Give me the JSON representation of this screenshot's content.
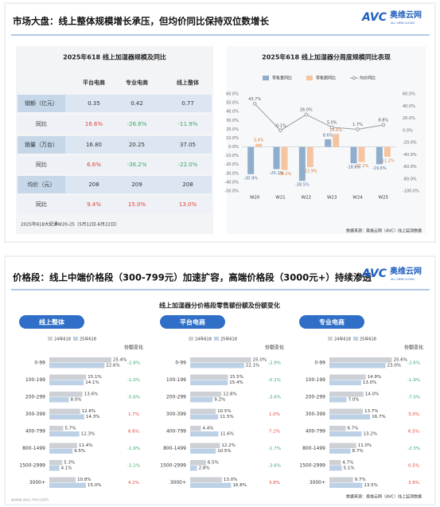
{
  "logo": {
    "mark": "AVC",
    "name": "奥维云网",
    "sub": "ALL VIEW CLOUD"
  },
  "url": "www.avc-mr.com",
  "slide1": {
    "title": "市场大盘：线上整体规模增长承压，但均价同比保持双位数增长",
    "source": "数据来源：奥维云网（AVC）线上监测数据"
  },
  "slide2": {
    "title": "价格段：线上中端价格段（300-799元）加速扩容，高端价格段（3000元+）持续渗透",
    "subtitle": "线上加湿器分价格段零售额份额及份额变化",
    "source": "数据来源：奥维云网（AVC）线上监测数据"
  },
  "table": {
    "title": "2025年618 线上加湿器规模及同比",
    "columns": [
      "平台电商",
      "专业电商",
      "线上整体"
    ],
    "rows": [
      [
        "销额（亿元）",
        "0.35",
        "0.42",
        "0.77"
      ],
      [
        "同比",
        "16.6%",
        "-26.6%",
        "-11.9%"
      ],
      [
        "销量（万台）",
        "16.80",
        "20.25",
        "37.05"
      ],
      [
        "同比",
        "6.6%",
        "-36.2%",
        "-22.0%"
      ],
      [
        "均价（元）",
        "208",
        "209",
        "208"
      ],
      [
        "同比",
        "9.4%",
        "15.0%",
        "13.0%"
      ]
    ],
    "note": "2025年618大促通W20-25（5月12日-6月22日）"
  },
  "chart_data": [
    {
      "type": "bar",
      "title": "2025年618 线上加湿器分周度规模同比表现",
      "categories": [
        "W20",
        "W21",
        "W22",
        "W23",
        "W24",
        "W25"
      ],
      "series": [
        {
          "name": "零售量同比",
          "color": "#8fadcc",
          "values": [
            -30.9,
            -25.2,
            -38.5,
            8.6,
            -18.6,
            -19.6
          ],
          "value_labels": [
            "-30.9%",
            "-25.2%",
            "-38.5%",
            "8.6%",
            "-18.6%",
            "-19.6%"
          ]
        },
        {
          "name": "零售额同比",
          "color": "#f5c4a0",
          "values": [
            3.4,
            -26.2,
            -22.9,
            14.6,
            -17.2,
            -11.2
          ],
          "value_labels": [
            "3.4%",
            "-26.2%",
            "-22.9%",
            "14.6%",
            "-17.2%",
            "-11.2%"
          ]
        },
        {
          "name": "均价同比",
          "type": "line",
          "axis": "y2",
          "color": "#9a9a9a",
          "values": [
            43.7,
            -0.1,
            26.0,
            5.0,
            1.7,
            8.8
          ],
          "value_labels": [
            "43.7%",
            "-0.1%",
            "26.0%",
            "5.0%",
            "1.7%",
            "8.8%"
          ]
        }
      ],
      "ylim": [
        -50,
        60
      ],
      "yticks": [
        {
          "value": 60,
          "label": "60.0%"
        },
        {
          "value": 50,
          "label": "50.0%"
        },
        {
          "value": 40,
          "label": "40.0%"
        },
        {
          "value": 30,
          "label": "30.0%"
        },
        {
          "value": 20,
          "label": "20.0%"
        },
        {
          "value": 10,
          "label": "10.0%"
        },
        {
          "value": 0,
          "label": "0.0%"
        },
        {
          "value": -10,
          "label": "-10.0%"
        },
        {
          "value": -20,
          "label": "-20.0%"
        },
        {
          "value": -30,
          "label": "-30.0%"
        },
        {
          "value": -40,
          "label": "-40.0%"
        },
        {
          "value": -50,
          "label": "-50.0%"
        }
      ],
      "y2lim": [
        -100,
        60
      ],
      "y2ticks": [
        {
          "value": 60,
          "label": "60.0%"
        },
        {
          "value": 40,
          "label": "40.0%"
        },
        {
          "value": 20,
          "label": "20.0%"
        },
        {
          "value": 0,
          "label": "0.0%"
        },
        {
          "value": -20,
          "label": "-20.0%"
        },
        {
          "value": -40,
          "label": "-40.0%"
        },
        {
          "value": -60,
          "label": "-60.0%"
        },
        {
          "value": -80,
          "label": "-80.0%"
        },
        {
          "value": -100,
          "label": "-100.0%"
        }
      ],
      "grid": false
    },
    {
      "type": "bar",
      "orientation": "horizontal",
      "title": "线上整体",
      "categories": [
        "0-99",
        "100-199",
        "200-299",
        "300-399",
        "400-799",
        "800-1499",
        "1500-2999",
        "3000+"
      ],
      "xlim": [
        0,
        30
      ],
      "series": [
        {
          "name": "24年618",
          "color": "#cdd0d5",
          "values": [
            25.4,
            15.1,
            13.6,
            12.6,
            5.7,
            11.4,
            5.3,
            10.8
          ],
          "value_labels": [
            "25.4%",
            "15.1%",
            "13.6%",
            "12.6%",
            "5.7%",
            "11.4%",
            "5.3%",
            "10.8%"
          ]
        },
        {
          "name": "25年618",
          "color": "#bcd0e6",
          "values": [
            22.6,
            14.1,
            8.0,
            14.3,
            12.3,
            9.5,
            4.1,
            15.0
          ],
          "value_labels": [
            "22.6%",
            "14.1%",
            "8.0%",
            "14.3%",
            "12.3%",
            "9.5%",
            "4.1%",
            "15.0%"
          ]
        }
      ],
      "change": {
        "name": "份额变化",
        "values": [
          -2.8,
          -1.0,
          -5.6,
          1.7,
          6.6,
          -1.9,
          -1.2,
          4.2
        ],
        "value_labels": [
          "-2.8%",
          "-1.0%",
          "-5.6%",
          "1.7%",
          "6.6%",
          "-1.9%",
          "-1.2%",
          "4.2%"
        ],
        "positive_color": "#e0463c",
        "negative_color": "#3aa86b"
      }
    },
    {
      "type": "bar",
      "orientation": "horizontal",
      "title": "平台电商",
      "categories": [
        "0-99",
        "100-199",
        "200-299",
        "300-399",
        "400-799",
        "800-1499",
        "1500-2999",
        "3000+"
      ],
      "xlim": [
        0,
        30
      ],
      "series": [
        {
          "name": "24年618",
          "color": "#cdd0d5",
          "values": [
            25.0,
            15.5,
            12.8,
            10.5,
            4.4,
            12.2,
            6.5,
            13.0
          ],
          "value_labels": [
            "25.0%",
            "15.5%",
            "12.8%",
            "10.5%",
            "4.4%",
            "12.2%",
            "6.5%",
            "13.0%"
          ]
        },
        {
          "name": "25年618",
          "color": "#bcd0e6",
          "values": [
            22.1,
            15.4,
            9.2,
            11.5,
            11.6,
            10.5,
            2.8,
            16.8
          ],
          "value_labels": [
            "22.1%",
            "15.4%",
            "9.2%",
            "11.5%",
            "11.6%",
            "10.5%",
            "2.8%",
            "16.8%"
          ]
        }
      ],
      "change": {
        "name": "份额变化",
        "values": [
          -2.9,
          -0.1,
          -3.6,
          1.0,
          7.2,
          -1.7,
          -3.6,
          3.8
        ],
        "value_labels": [
          "-2.9%",
          "-0.1%",
          "-3.6%",
          "1.0%",
          "7.2%",
          "-1.7%",
          "-3.6%",
          "3.8%"
        ],
        "positive_color": "#e0463c",
        "negative_color": "#3aa86b"
      }
    },
    {
      "type": "bar",
      "orientation": "horizontal",
      "title": "专业电商",
      "categories": [
        "0-99",
        "100-199",
        "200-299",
        "300-399",
        "400-799",
        "800-1499",
        "1500-2999",
        "3000+"
      ],
      "xlim": [
        0,
        30
      ],
      "series": [
        {
          "name": "24年618",
          "color": "#cdd0d5",
          "values": [
            25.6,
            14.9,
            14.0,
            13.7,
            6.7,
            11.0,
            4.7,
            9.7
          ],
          "value_labels": [
            "25.6%",
            "14.9%",
            "14.0%",
            "13.7%",
            "6.7%",
            "11.0%",
            "4.7%",
            "9.7%"
          ]
        },
        {
          "name": "25年618",
          "color": "#bcd0e6",
          "values": [
            23.0,
            13.0,
            7.0,
            16.7,
            13.2,
            8.7,
            5.1,
            13.5
          ],
          "value_labels": [
            "23.0%",
            "13.0%",
            "7.0%",
            "16.7%",
            "13.2%",
            "8.7%",
            "5.1%",
            "13.5%"
          ]
        }
      ],
      "change": {
        "name": "份额变化",
        "values": [
          -2.6,
          -1.9,
          -7.0,
          3.0,
          6.5,
          -2.3,
          0.5,
          3.8
        ],
        "value_labels": [
          "-2.6%",
          "-1.9%",
          "-7.0%",
          "3.0%",
          "6.5%",
          "-2.3%",
          "0.5%",
          "3.8%"
        ],
        "positive_color": "#e0463c",
        "negative_color": "#3aa86b"
      }
    }
  ]
}
